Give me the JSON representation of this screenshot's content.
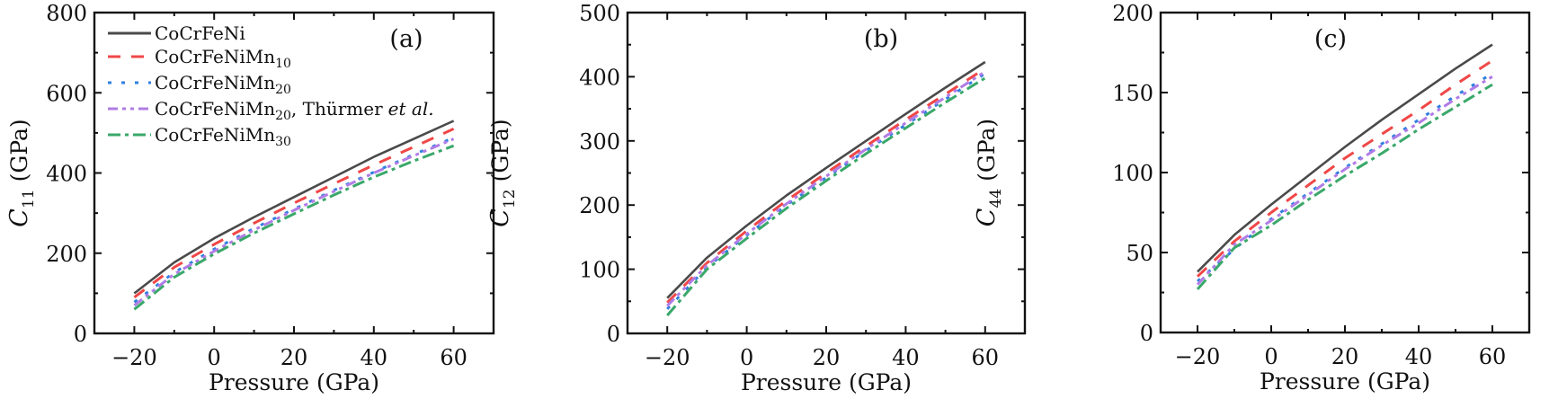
{
  "legend": {
    "items": [
      {
        "label": "CoCrFeNi",
        "sub": "",
        "suffix": ""
      },
      {
        "label": "CoCrFeNiMn",
        "sub": "10",
        "suffix": ""
      },
      {
        "label": "CoCrFeNiMn",
        "sub": "20",
        "suffix": ""
      },
      {
        "label": "CoCrFeNiMn",
        "sub": "20",
        "suffix": ", Thürmer",
        "italic": "et al."
      },
      {
        "label": "CoCrFeNiMn",
        "sub": "30",
        "suffix": ""
      }
    ]
  },
  "chart_data": [
    {
      "type": "line",
      "panel_label": "(a)",
      "xlabel": "Pressure (GPa)",
      "ylabel": "C",
      "ylabel_sub": "11",
      "ylabel_unit": "(GPa)",
      "xlim": [
        -30,
        70
      ],
      "ylim": [
        0,
        800
      ],
      "xticks": [
        -20,
        0,
        20,
        40,
        60
      ],
      "xtick_labels": [
        "−20",
        "0",
        "20",
        "40",
        "60"
      ],
      "yticks": [
        0,
        200,
        400,
        600,
        800
      ],
      "ytick_labels": [
        "0",
        "200",
        "400",
        "600",
        "800"
      ],
      "x": [
        -20,
        -10,
        0,
        10,
        20,
        30,
        40,
        50,
        60
      ],
      "legend_position": "top-left",
      "series": [
        {
          "name": "CoCrFeNi",
          "color": "#4a4a4a",
          "style": "solid",
          "values": [
            100,
            177,
            237,
            290,
            340,
            390,
            440,
            485,
            530
          ]
        },
        {
          "name": "CoCrFeNiMn10",
          "color": "#f04747",
          "style": "dashed",
          "values": [
            90,
            165,
            222,
            275,
            325,
            373,
            420,
            465,
            510
          ]
        },
        {
          "name": "CoCrFeNiMn20",
          "color": "#2f7fe0",
          "style": "dotted",
          "values": [
            78,
            152,
            210,
            262,
            310,
            357,
            402,
            446,
            488
          ]
        },
        {
          "name": "CoCrFeNiMn20, Thürmer et al.",
          "color": "#b07ce6",
          "style": "dash-dot-dot",
          "values": [
            70,
            148,
            205,
            258,
            307,
            354,
            400,
            443,
            485
          ]
        },
        {
          "name": "CoCrFeNiMn30",
          "color": "#3aa86a",
          "style": "dash-dot",
          "values": [
            60,
            140,
            198,
            250,
            298,
            345,
            390,
            430,
            468
          ]
        }
      ]
    },
    {
      "type": "line",
      "panel_label": "(b)",
      "xlabel": "Pressure (GPa)",
      "ylabel": "C",
      "ylabel_sub": "12",
      "ylabel_unit": "(GPa)",
      "xlim": [
        -30,
        70
      ],
      "ylim": [
        0,
        500
      ],
      "xticks": [
        -20,
        0,
        20,
        40,
        60
      ],
      "xtick_labels": [
        "−20",
        "0",
        "20",
        "40",
        "60"
      ],
      "yticks": [
        0,
        100,
        200,
        300,
        400,
        500
      ],
      "ytick_labels": [
        "0",
        "100",
        "200",
        "300",
        "400",
        "500"
      ],
      "x": [
        -20,
        -10,
        0,
        10,
        20,
        30,
        40,
        50,
        60
      ],
      "series": [
        {
          "name": "CoCrFeNi",
          "color": "#4a4a4a",
          "style": "solid",
          "values": [
            55,
            118,
            168,
            215,
            258,
            300,
            342,
            383,
            423
          ]
        },
        {
          "name": "CoCrFeNiMn10",
          "color": "#f04747",
          "style": "dashed",
          "values": [
            48,
            110,
            160,
            207,
            250,
            292,
            333,
            373,
            413
          ]
        },
        {
          "name": "CoCrFeNiMn20",
          "color": "#2f7fe0",
          "style": "dotted",
          "values": [
            38,
            103,
            153,
            200,
            243,
            285,
            325,
            365,
            405
          ]
        },
        {
          "name": "CoCrFeNiMn20, Thürmer et al.",
          "color": "#b07ce6",
          "style": "dash-dot-dot",
          "values": [
            43,
            106,
            155,
            202,
            245,
            287,
            328,
            368,
            408
          ]
        },
        {
          "name": "CoCrFeNiMn30",
          "color": "#3aa86a",
          "style": "dash-dot",
          "values": [
            28,
            100,
            148,
            195,
            238,
            280,
            320,
            360,
            398
          ]
        }
      ]
    },
    {
      "type": "line",
      "panel_label": "(c)",
      "xlabel": "Pressure (GPa)",
      "ylabel": "C",
      "ylabel_sub": "44",
      "ylabel_unit": "(GPa)",
      "xlim": [
        -30,
        70
      ],
      "ylim": [
        0,
        200
      ],
      "xticks": [
        -20,
        0,
        20,
        40,
        60
      ],
      "xtick_labels": [
        "−20",
        "0",
        "20",
        "40",
        "60"
      ],
      "yticks": [
        0,
        50,
        100,
        150,
        200
      ],
      "ytick_labels": [
        "0",
        "50",
        "100",
        "150",
        "200"
      ],
      "x": [
        -20,
        -10,
        0,
        10,
        20,
        30,
        40,
        50,
        60
      ],
      "series": [
        {
          "name": "CoCrFeNi",
          "color": "#4a4a4a",
          "style": "solid",
          "values": [
            38,
            61,
            80,
            98,
            116,
            133,
            149,
            165,
            180
          ]
        },
        {
          "name": "CoCrFeNiMn10",
          "color": "#f04747",
          "style": "dashed",
          "values": [
            35,
            57,
            75,
            92,
            109,
            124,
            139,
            155,
            170
          ]
        },
        {
          "name": "CoCrFeNiMn20",
          "color": "#2f7fe0",
          "style": "dotted",
          "values": [
            32,
            52,
            71,
            87,
            103,
            118,
            133,
            148,
            162
          ]
        },
        {
          "name": "CoCrFeNiMn20, Thürmer et al.",
          "color": "#b07ce6",
          "style": "dash-dot-dot",
          "values": [
            30,
            55,
            70,
            86,
            102,
            117,
            131,
            146,
            160
          ]
        },
        {
          "name": "CoCrFeNiMn30",
          "color": "#3aa86a",
          "style": "dash-dot",
          "values": [
            27,
            53,
            67,
            83,
            98,
            112,
            127,
            141,
            155
          ]
        }
      ]
    }
  ]
}
